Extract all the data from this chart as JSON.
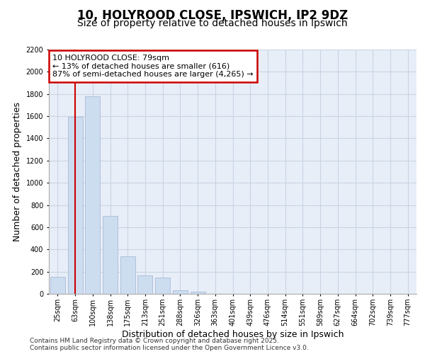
{
  "title": "10, HOLYROOD CLOSE, IPSWICH, IP2 9DZ",
  "subtitle": "Size of property relative to detached houses in Ipswich",
  "xlabel": "Distribution of detached houses by size in Ipswich",
  "ylabel": "Number of detached properties",
  "categories": [
    "25sqm",
    "63sqm",
    "100sqm",
    "138sqm",
    "175sqm",
    "213sqm",
    "251sqm",
    "288sqm",
    "326sqm",
    "363sqm",
    "401sqm",
    "439sqm",
    "476sqm",
    "514sqm",
    "551sqm",
    "589sqm",
    "627sqm",
    "664sqm",
    "702sqm",
    "739sqm",
    "777sqm"
  ],
  "values": [
    155,
    1595,
    1780,
    700,
    340,
    165,
    145,
    30,
    20,
    0,
    0,
    0,
    0,
    0,
    0,
    0,
    0,
    0,
    0,
    0,
    0
  ],
  "bar_color": "#ccddf0",
  "bar_edge_color": "#aabbd8",
  "vline_color": "#cc0000",
  "vline_x": 1.0,
  "annotation_text": "10 HOLYROOD CLOSE: 79sqm\n← 13% of detached houses are smaller (616)\n87% of semi-detached houses are larger (4,265) →",
  "annotation_box_color": "white",
  "annotation_box_edge_color": "#cc0000",
  "ylim_max": 2200,
  "yticks": [
    0,
    200,
    400,
    600,
    800,
    1000,
    1200,
    1400,
    1600,
    1800,
    2000,
    2200
  ],
  "grid_color": "#c8d4e4",
  "background_color": "#e8eef8",
  "footer_line1": "Contains HM Land Registry data © Crown copyright and database right 2025.",
  "footer_line2": "Contains public sector information licensed under the Open Government Licence v3.0.",
  "title_fontsize": 12,
  "subtitle_fontsize": 10,
  "label_fontsize": 9,
  "tick_fontsize": 7,
  "annotation_fontsize": 8,
  "footer_fontsize": 6.5
}
